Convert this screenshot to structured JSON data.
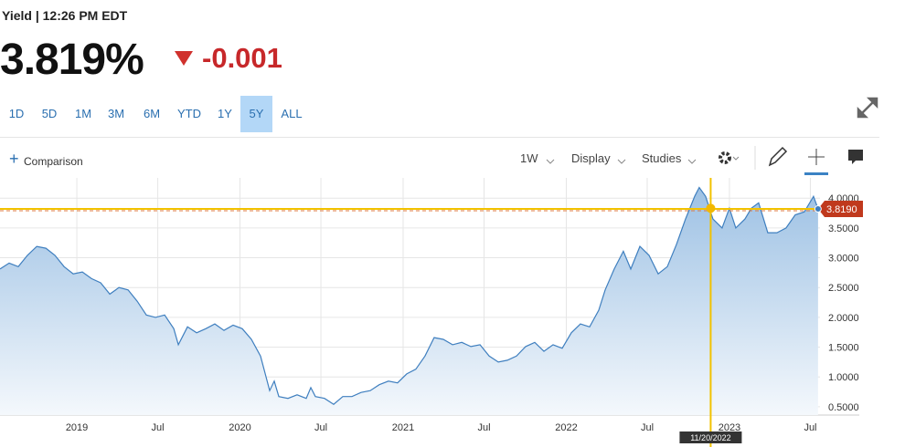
{
  "header": {
    "label": "Yield | 12:26 PM EDT",
    "price": "3.819%",
    "change": "-0.001"
  },
  "ranges": [
    "1D",
    "5D",
    "1M",
    "3M",
    "6M",
    "YTD",
    "1Y",
    "5Y",
    "ALL"
  ],
  "selected_range": "5Y",
  "toolbar": {
    "comparison": "Comparison",
    "interval": "1W",
    "display": "Display",
    "studies": "Studies"
  },
  "chart_data": {
    "type": "area",
    "color": "#3f7fbf",
    "x": [
      2018.529,
      2018.585,
      2018.641,
      2018.697,
      2018.754,
      2018.81,
      2018.866,
      2018.922,
      2018.978,
      2019.034,
      2019.09,
      2019.146,
      2019.202,
      2019.258,
      2019.314,
      2019.37,
      2019.426,
      2019.482,
      2019.538,
      2019.594,
      2019.622,
      2019.678,
      2019.734,
      2019.79,
      2019.846,
      2019.902,
      2019.958,
      2020.014,
      2020.07,
      2020.126,
      2020.182,
      2020.21,
      2020.238,
      2020.294,
      2020.35,
      2020.406,
      2020.434,
      2020.462,
      2020.518,
      2020.574,
      2020.63,
      2020.686,
      2020.742,
      2020.798,
      2020.854,
      2020.91,
      2020.966,
      2021.022,
      2021.078,
      2021.134,
      2021.19,
      2021.246,
      2021.303,
      2021.359,
      2021.415,
      2021.471,
      2021.527,
      2021.583,
      2021.639,
      2021.695,
      2021.751,
      2021.807,
      2021.863,
      2021.919,
      2021.975,
      2022.031,
      2022.087,
      2022.143,
      2022.199,
      2022.238,
      2022.294,
      2022.35,
      2022.395,
      2022.451,
      2022.507,
      2022.563,
      2022.619,
      2022.675,
      2022.731,
      2022.787,
      2022.815,
      2022.854,
      2022.899,
      2022.955,
      2023.0,
      2023.039,
      2023.095,
      2023.134,
      2023.179,
      2023.235,
      2023.291,
      2023.347,
      2023.403,
      2023.459,
      2023.515,
      2023.543
    ],
    "values": [
      2.81,
      2.91,
      2.85,
      3.04,
      3.19,
      3.16,
      3.04,
      2.85,
      2.73,
      2.76,
      2.65,
      2.58,
      2.39,
      2.5,
      2.46,
      2.27,
      2.04,
      2.0,
      2.04,
      1.81,
      1.54,
      1.84,
      1.74,
      1.81,
      1.89,
      1.78,
      1.87,
      1.81,
      1.63,
      1.35,
      0.77,
      0.93,
      0.67,
      0.64,
      0.7,
      0.64,
      0.82,
      0.67,
      0.64,
      0.54,
      0.67,
      0.67,
      0.74,
      0.77,
      0.87,
      0.93,
      0.9,
      1.05,
      1.13,
      1.35,
      1.66,
      1.63,
      1.54,
      1.58,
      1.51,
      1.54,
      1.35,
      1.25,
      1.28,
      1.35,
      1.51,
      1.58,
      1.43,
      1.54,
      1.48,
      1.74,
      1.89,
      1.84,
      2.12,
      2.46,
      2.81,
      3.11,
      2.81,
      3.19,
      3.04,
      2.73,
      2.85,
      3.22,
      3.65,
      4.03,
      4.18,
      4.03,
      3.65,
      3.5,
      3.83,
      3.5,
      3.65,
      3.83,
      3.92,
      3.42,
      3.42,
      3.5,
      3.72,
      3.77,
      4.03,
      3.819
    ],
    "xlim": [
      2018.529,
      2023.555
    ],
    "ylim": [
      0.36,
      4.34
    ],
    "yticks": [
      {
        "value": 0.5,
        "label": "0.5000"
      },
      {
        "value": 1,
        "label": "1.0000"
      },
      {
        "value": 1.5,
        "label": "1.5000"
      },
      {
        "value": 2,
        "label": "2.0000"
      },
      {
        "value": 2.5,
        "label": "2.5000"
      },
      {
        "value": 3,
        "label": "3.0000"
      },
      {
        "value": 3.5,
        "label": "3.5000"
      },
      {
        "value": 4,
        "label": "4.0000"
      }
    ],
    "xticks": [
      2019,
      {
        "value": 2019.496,
        "label": "Jul"
      },
      2020,
      {
        "value": 2020.496,
        "label": "Jul"
      },
      2021,
      {
        "value": 2021.496,
        "label": "Jul"
      },
      2022,
      {
        "value": 2022.496,
        "label": "Jul"
      },
      2023,
      {
        "value": 2023.496,
        "label": "Jul"
      }
    ],
    "grid": true,
    "last_value": {
      "value": 3.819,
      "label": "3.8190"
    },
    "crosshair": {
      "x": 2022.885,
      "x_label": "11/20/2022",
      "y": 3.83
    }
  }
}
